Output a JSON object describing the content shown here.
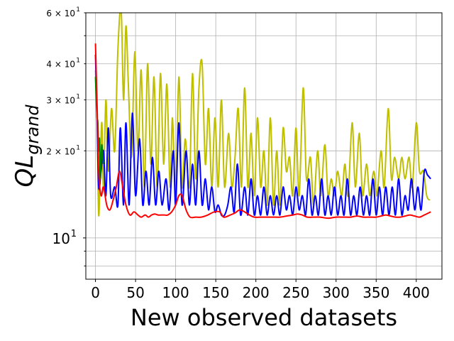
{
  "chart_data": {
    "type": "line",
    "xlabel": "New observed datasets",
    "ylabel_main": "QL",
    "ylabel_sub": "grand",
    "yscale": "log",
    "xlim": [
      -12,
      432
    ],
    "ylim": [
      7.2,
      60
    ],
    "grid": true,
    "x_ticks": [
      0,
      50,
      100,
      150,
      200,
      250,
      300,
      350,
      400
    ],
    "x_tick_labels": [
      "0",
      "50",
      "100",
      "150",
      "200",
      "250",
      "300",
      "350",
      "400"
    ],
    "y_major_ticks": [
      10
    ],
    "y_minor_ticks": [
      20,
      30,
      40,
      60
    ],
    "y_minor_labels": {
      "20": "2 × 10",
      "30": "3 × 10",
      "40": "4 × 10",
      "60": "6 × 10"
    },
    "y_exponent": "1",
    "y_major_label_base": "10",
    "series": [
      {
        "color": "#bfbf00",
        "points": [
          [
            0,
            38
          ],
          [
            2,
            26
          ],
          [
            4,
            12
          ],
          [
            6,
            18
          ],
          [
            8,
            25
          ],
          [
            10,
            15
          ],
          [
            13,
            30
          ],
          [
            16,
            17
          ],
          [
            20,
            28
          ],
          [
            24,
            20
          ],
          [
            28,
            45
          ],
          [
            32,
            62
          ],
          [
            35,
            30
          ],
          [
            38,
            54
          ],
          [
            41,
            34
          ],
          [
            45,
            19
          ],
          [
            49,
            44
          ],
          [
            53,
            20
          ],
          [
            57,
            38
          ],
          [
            61,
            15
          ],
          [
            65,
            40
          ],
          [
            69,
            18
          ],
          [
            73,
            36
          ],
          [
            77,
            15
          ],
          [
            81,
            37
          ],
          [
            85,
            18
          ],
          [
            89,
            34
          ],
          [
            93,
            15
          ],
          [
            96,
            26
          ],
          [
            100,
            14
          ],
          [
            104,
            36
          ],
          [
            108,
            15
          ],
          [
            112,
            22
          ],
          [
            117,
            15
          ],
          [
            121,
            37
          ],
          [
            125,
            16
          ],
          [
            129,
            33
          ],
          [
            133,
            40
          ],
          [
            137,
            18
          ],
          [
            141,
            28
          ],
          [
            145,
            15
          ],
          [
            149,
            26
          ],
          [
            153,
            15
          ],
          [
            157,
            30
          ],
          [
            161,
            15
          ],
          [
            166,
            23
          ],
          [
            170,
            15
          ],
          [
            174,
            19
          ],
          [
            178,
            28
          ],
          [
            182,
            15
          ],
          [
            186,
            33
          ],
          [
            190,
            15
          ],
          [
            194,
            23
          ],
          [
            198,
            14
          ],
          [
            202,
            26
          ],
          [
            206,
            15
          ],
          [
            210,
            20
          ],
          [
            214,
            13
          ],
          [
            218,
            26
          ],
          [
            222,
            13
          ],
          [
            226,
            20
          ],
          [
            230,
            13
          ],
          [
            234,
            24
          ],
          [
            238,
            17
          ],
          [
            242,
            19
          ],
          [
            246,
            14
          ],
          [
            250,
            24
          ],
          [
            254,
            14
          ],
          [
            259,
            33
          ],
          [
            263,
            16
          ],
          [
            268,
            19
          ],
          [
            272,
            13
          ],
          [
            277,
            20
          ],
          [
            281,
            14
          ],
          [
            286,
            21
          ],
          [
            290,
            14
          ],
          [
            294,
            16
          ],
          [
            298,
            14
          ],
          [
            302,
            17
          ],
          [
            307,
            14
          ],
          [
            311,
            18
          ],
          [
            315,
            14
          ],
          [
            320,
            25
          ],
          [
            324,
            15
          ],
          [
            329,
            23
          ],
          [
            333,
            14
          ],
          [
            338,
            18
          ],
          [
            342,
            14
          ],
          [
            347,
            17
          ],
          [
            351,
            14
          ],
          [
            356,
            20
          ],
          [
            360,
            15
          ],
          [
            365,
            28
          ],
          [
            369,
            16
          ],
          [
            373,
            19
          ],
          [
            378,
            16
          ],
          [
            382,
            19
          ],
          [
            386,
            16
          ],
          [
            391,
            19
          ],
          [
            395,
            15
          ],
          [
            400,
            25
          ],
          [
            404,
            17
          ],
          [
            409,
            17
          ],
          [
            413,
            14
          ],
          [
            417,
            13.5
          ]
        ]
      },
      {
        "color": "#0000ff",
        "points": [
          [
            0,
            43
          ],
          [
            2,
            26
          ],
          [
            4,
            15
          ],
          [
            7,
            17
          ],
          [
            10,
            20
          ],
          [
            13,
            14
          ],
          [
            16,
            24
          ],
          [
            19,
            14
          ],
          [
            24,
            15
          ],
          [
            28,
            13
          ],
          [
            31,
            24
          ],
          [
            35,
            13
          ],
          [
            38,
            25
          ],
          [
            42,
            13
          ],
          [
            46,
            27
          ],
          [
            50,
            14
          ],
          [
            55,
            22
          ],
          [
            59,
            13
          ],
          [
            63,
            17
          ],
          [
            67,
            13
          ],
          [
            71,
            19
          ],
          [
            75,
            13
          ],
          [
            79,
            17
          ],
          [
            83,
            13
          ],
          [
            88,
            16
          ],
          [
            92,
            12.5
          ],
          [
            97,
            20
          ],
          [
            100,
            13
          ],
          [
            104,
            25
          ],
          [
            108,
            13
          ],
          [
            113,
            20
          ],
          [
            117,
            13
          ],
          [
            121,
            18
          ],
          [
            125,
            13
          ],
          [
            129,
            20
          ],
          [
            133,
            13
          ],
          [
            137,
            16
          ],
          [
            141,
            12.5
          ],
          [
            145,
            15
          ],
          [
            149,
            12.3
          ],
          [
            153,
            13
          ],
          [
            157,
            12
          ],
          [
            161,
            12
          ],
          [
            165,
            13
          ],
          [
            169,
            15
          ],
          [
            173,
            12.3
          ],
          [
            177,
            18
          ],
          [
            181,
            12
          ],
          [
            186,
            15
          ],
          [
            190,
            12
          ],
          [
            194,
            16
          ],
          [
            198,
            12
          ],
          [
            202,
            14
          ],
          [
            206,
            12
          ],
          [
            210,
            15
          ],
          [
            214,
            12
          ],
          [
            218,
            14
          ],
          [
            222,
            12
          ],
          [
            226,
            14
          ],
          [
            230,
            12
          ],
          [
            234,
            15
          ],
          [
            238,
            12.5
          ],
          [
            242,
            14
          ],
          [
            246,
            12
          ],
          [
            250,
            15
          ],
          [
            254,
            12.5
          ],
          [
            258,
            14
          ],
          [
            262,
            12
          ],
          [
            266,
            16
          ],
          [
            270,
            12
          ],
          [
            274,
            14
          ],
          [
            278,
            12
          ],
          [
            282,
            16
          ],
          [
            286,
            12
          ],
          [
            290,
            14
          ],
          [
            294,
            12
          ],
          [
            298,
            15
          ],
          [
            302,
            12
          ],
          [
            306,
            14
          ],
          [
            310,
            12
          ],
          [
            314,
            16
          ],
          [
            318,
            12
          ],
          [
            322,
            14
          ],
          [
            326,
            12
          ],
          [
            330,
            15
          ],
          [
            334,
            12
          ],
          [
            338,
            14
          ],
          [
            342,
            12
          ],
          [
            346,
            16
          ],
          [
            350,
            12
          ],
          [
            354,
            15
          ],
          [
            358,
            12
          ],
          [
            362,
            15
          ],
          [
            366,
            12
          ],
          [
            370,
            15
          ],
          [
            374,
            12
          ],
          [
            378,
            16
          ],
          [
            382,
            12
          ],
          [
            386,
            14
          ],
          [
            390,
            12.5
          ],
          [
            394,
            16
          ],
          [
            398,
            12.5
          ],
          [
            402,
            15
          ],
          [
            406,
            12.5
          ],
          [
            410,
            17
          ],
          [
            414,
            16.5
          ],
          [
            418,
            16
          ]
        ]
      },
      {
        "color": "#008000",
        "points": [
          [
            0,
            36
          ],
          [
            1,
            30
          ],
          [
            2,
            26
          ],
          [
            3,
            25
          ],
          [
            4,
            20
          ],
          [
            5,
            22
          ],
          [
            6,
            16
          ],
          [
            7,
            19
          ],
          [
            8,
            21
          ],
          [
            9,
            19
          ],
          [
            10,
            18
          ]
        ]
      },
      {
        "color": "#ff0000",
        "points": [
          [
            0,
            47
          ],
          [
            2,
            29
          ],
          [
            4,
            17
          ],
          [
            7,
            14
          ],
          [
            10,
            15
          ],
          [
            14,
            13
          ],
          [
            18,
            12.5
          ],
          [
            22,
            13.5
          ],
          [
            26,
            15
          ],
          [
            30,
            17
          ],
          [
            34,
            15
          ],
          [
            38,
            13
          ],
          [
            43,
            12
          ],
          [
            48,
            12.3
          ],
          [
            53,
            12
          ],
          [
            57,
            11.8
          ],
          [
            62,
            12
          ],
          [
            66,
            11.8
          ],
          [
            70,
            12
          ],
          [
            74,
            12.1
          ],
          [
            78,
            12
          ],
          [
            82,
            12
          ],
          [
            86,
            12
          ],
          [
            90,
            12
          ],
          [
            95,
            12.3
          ],
          [
            100,
            13
          ],
          [
            104,
            14
          ],
          [
            108,
            14
          ],
          [
            113,
            12.5
          ],
          [
            118,
            11.8
          ],
          [
            125,
            11.8
          ],
          [
            132,
            11.8
          ],
          [
            140,
            12
          ],
          [
            148,
            12.3
          ],
          [
            155,
            12.3
          ],
          [
            160,
            11.8
          ],
          [
            168,
            12
          ],
          [
            174,
            12.2
          ],
          [
            180,
            12.5
          ],
          [
            186,
            12.3
          ],
          [
            192,
            12
          ],
          [
            198,
            11.8
          ],
          [
            206,
            11.8
          ],
          [
            214,
            11.8
          ],
          [
            222,
            11.8
          ],
          [
            230,
            11.8
          ],
          [
            238,
            11.9
          ],
          [
            246,
            12
          ],
          [
            252,
            12.1
          ],
          [
            258,
            12
          ],
          [
            264,
            11.8
          ],
          [
            272,
            11.8
          ],
          [
            280,
            11.8
          ],
          [
            290,
            11.7
          ],
          [
            300,
            11.8
          ],
          [
            310,
            11.8
          ],
          [
            318,
            11.8
          ],
          [
            326,
            11.9
          ],
          [
            334,
            11.8
          ],
          [
            342,
            11.8
          ],
          [
            350,
            11.8
          ],
          [
            356,
            11.9
          ],
          [
            362,
            12
          ],
          [
            368,
            11.9
          ],
          [
            374,
            11.8
          ],
          [
            380,
            11.8
          ],
          [
            386,
            11.9
          ],
          [
            392,
            12
          ],
          [
            398,
            11.9
          ],
          [
            404,
            11.8
          ],
          [
            410,
            12
          ],
          [
            418,
            12.3
          ]
        ]
      }
    ]
  }
}
